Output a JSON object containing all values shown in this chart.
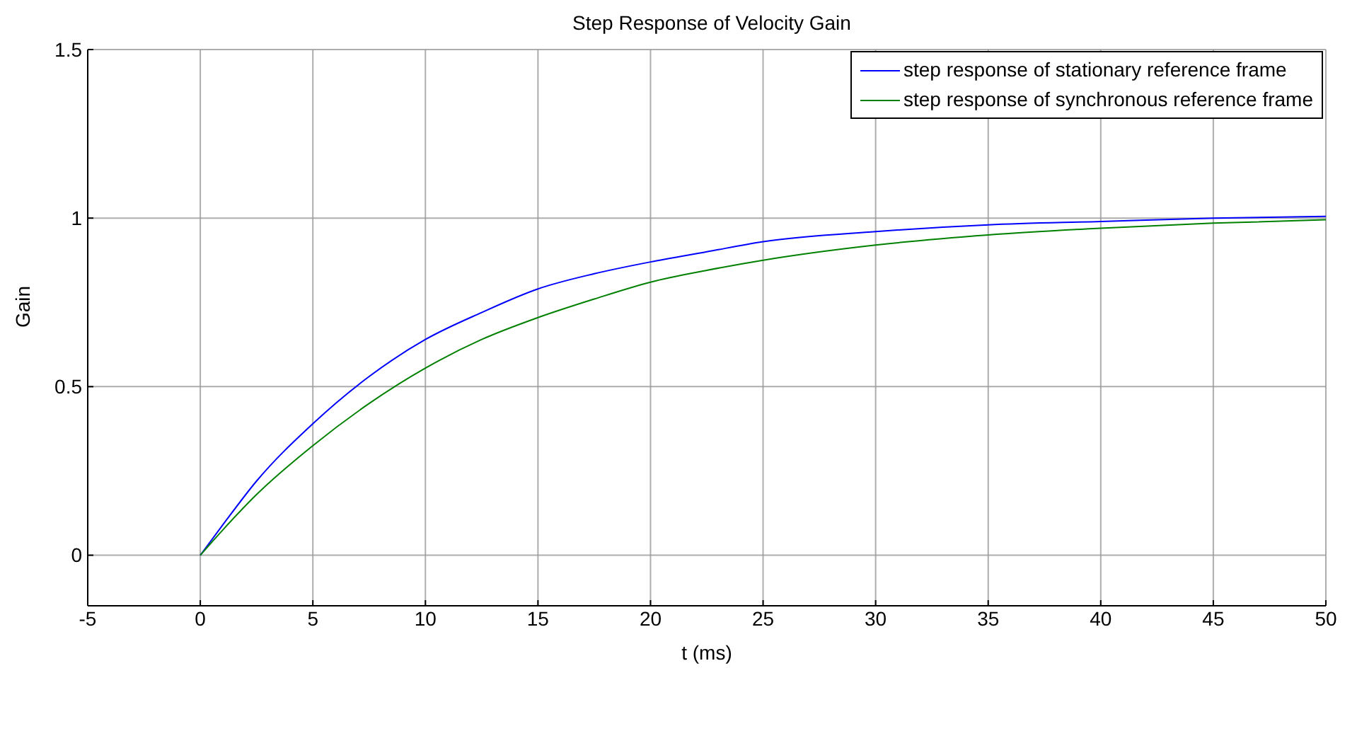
{
  "chart_data": {
    "type": "line",
    "title": "Step Response of Velocity Gain",
    "xlabel": "t (ms)",
    "ylabel": "Gain",
    "x": [
      0,
      1,
      2.5,
      5,
      7.5,
      10,
      12.5,
      15,
      17.5,
      20,
      22.5,
      25,
      30,
      35,
      40,
      45,
      50
    ],
    "series": [
      {
        "name": "step response of stationary reference frame",
        "color": "#0000ff",
        "values": [
          0,
          0.09,
          0.22,
          0.39,
          0.53,
          0.64,
          0.72,
          0.79,
          0.835,
          0.87,
          0.9,
          0.93,
          0.96,
          0.98,
          0.99,
          1.0,
          1.005
        ]
      },
      {
        "name": "step response of synchronous reference frame",
        "color": "#008000",
        "values": [
          0,
          0.075,
          0.18,
          0.325,
          0.45,
          0.555,
          0.64,
          0.705,
          0.76,
          0.81,
          0.845,
          0.875,
          0.92,
          0.95,
          0.97,
          0.985,
          0.995
        ]
      }
    ],
    "xlim": [
      -5,
      50
    ],
    "xticks": [
      -5,
      0,
      5,
      10,
      15,
      20,
      25,
      30,
      35,
      40,
      45,
      50
    ],
    "ylim": [
      -0.15,
      1.5
    ],
    "yticks": [
      0,
      0.5,
      1,
      1.5
    ],
    "grid": true,
    "legend": "top right",
    "marker": "none",
    "line_style": "solid"
  }
}
